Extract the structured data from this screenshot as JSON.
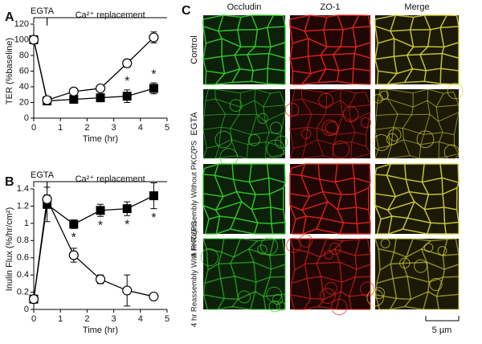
{
  "chart_data": [
    {
      "type": "line",
      "panel": "A",
      "ylabel": "TER (%baseline)",
      "xlabel": "Time (hr)",
      "annotations": [
        "EGTA",
        "Ca²⁺ replacement",
        "*",
        "*"
      ],
      "x": [
        0,
        0.5,
        1.5,
        2.5,
        3.5,
        4.5
      ],
      "xlim": [
        0,
        5
      ],
      "xticks": [
        0,
        1,
        2,
        3,
        4,
        5
      ],
      "ylim": [
        0,
        120
      ],
      "yticks": [
        0,
        20,
        40,
        60,
        80,
        100,
        120
      ],
      "series": [
        {
          "marker": "circle-open",
          "color": "#000000",
          "values": [
            100,
            23,
            34,
            38,
            70,
            103
          ],
          "errors": [
            null,
            3,
            3,
            3,
            5,
            7
          ]
        },
        {
          "marker": "square",
          "color": "#000000",
          "values": [
            100,
            22,
            24,
            26,
            28,
            38
          ],
          "errors": [
            null,
            3,
            4,
            3,
            8,
            7
          ]
        }
      ]
    },
    {
      "type": "line",
      "panel": "B",
      "ylabel": "Inulin Flux (%/hr/cm²)",
      "xlabel": "Time (hr)",
      "annotations": [
        "EGTA",
        "Ca²⁺ replacement",
        "*",
        "*",
        "*",
        "*"
      ],
      "x": [
        0,
        0.5,
        1.5,
        2.5,
        3.5,
        4.5
      ],
      "xlim": [
        0,
        5
      ],
      "xticks": [
        0,
        1,
        2,
        3,
        4,
        5
      ],
      "ylim": [
        0,
        1.4
      ],
      "yticks": [
        0,
        0.2,
        0.4,
        0.6,
        0.8,
        1,
        1.2,
        1.4
      ],
      "series": [
        {
          "marker": "circle-open",
          "color": "#000000",
          "values": [
            0.12,
            1.28,
            0.63,
            0.35,
            0.22,
            0.15
          ],
          "errors": [
            null,
            0.05,
            0.08,
            0.05,
            0.18,
            0.03
          ]
        },
        {
          "marker": "square",
          "color": "#000000",
          "values": [
            0.12,
            1.22,
            0.99,
            1.15,
            1.17,
            1.32
          ],
          "errors": [
            null,
            0.2,
            0.05,
            0.07,
            0.08,
            0.15
          ]
        }
      ]
    }
  ],
  "panel_c": {
    "label": "C",
    "columns": [
      "Occludin",
      "ZO-1",
      "Merge"
    ],
    "rows": [
      "Control",
      "EGTA",
      "4 hr Reassembly Without PKCζPS",
      "4 hr Reassembly With PKCζPS"
    ],
    "scale_bar": "5 µm"
  }
}
